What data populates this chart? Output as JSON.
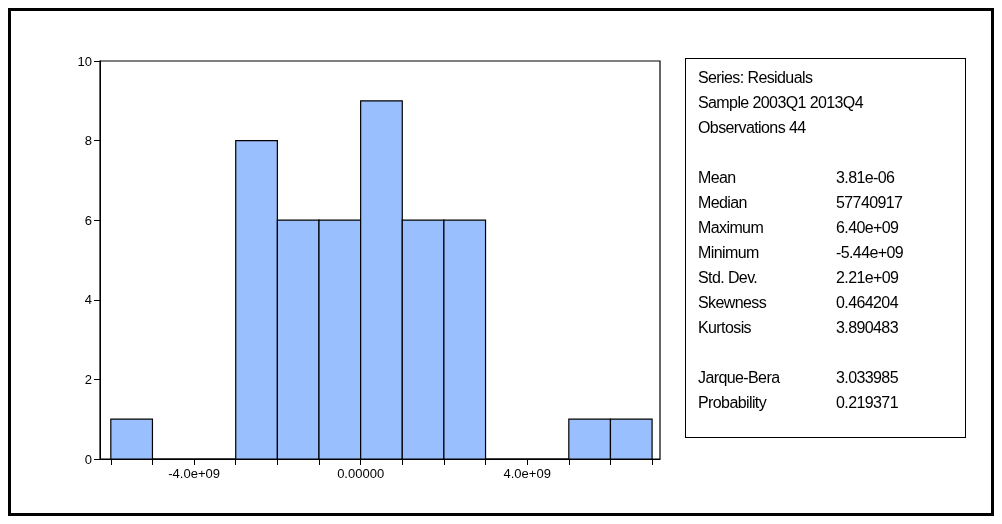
{
  "chart_data": {
    "type": "histogram",
    "bins": [
      -6000000000,
      -5000000000,
      -4000000000,
      -3000000000,
      -2000000000,
      -1000000000,
      0,
      1000000000,
      2000000000,
      3000000000,
      4000000000,
      5000000000,
      6000000000,
      7000000000
    ],
    "values": [
      1,
      0,
      0,
      8,
      6,
      6,
      9,
      6,
      6,
      0,
      0,
      1,
      1
    ],
    "color": "#99bfff",
    "xlim": [
      -6260000000,
      7190000000
    ],
    "xticks": [
      {
        "value": -6000000000,
        "label": null
      },
      {
        "value": -5000000000,
        "label": null
      },
      {
        "value": -4000000000,
        "label": "-4.0e+09"
      },
      {
        "value": -3000000000,
        "label": null
      },
      {
        "value": -2000000000,
        "label": null
      },
      {
        "value": -1000000000,
        "label": null
      },
      {
        "value": 0,
        "label": "0.00000"
      },
      {
        "value": 1000000000,
        "label": null
      },
      {
        "value": 2000000000,
        "label": null
      },
      {
        "value": 3000000000,
        "label": null
      },
      {
        "value": 4000000000,
        "label": "4.0e+09"
      },
      {
        "value": 5000000000,
        "label": null
      },
      {
        "value": 6000000000,
        "label": null
      },
      {
        "value": 7000000000,
        "label": null
      }
    ],
    "ylim": [
      0,
      10
    ],
    "yticks": [
      0,
      2,
      4,
      6,
      8,
      10
    ],
    "grid": false,
    "annotations": [
      "Series: Residuals",
      "Sample 2003Q1 2013Q4",
      "Observations 44",
      "Mean 3.81e-06",
      "Median 57740917",
      "Maximum 6.40e+09",
      "Minimum -5.44e+09",
      "Std. Dev. 2.21e+09",
      "Skewness 0.464204",
      "Kurtosis 3.890483",
      "Jarque-Bera 3.033985",
      "Probability 0.219371"
    ]
  }
}
